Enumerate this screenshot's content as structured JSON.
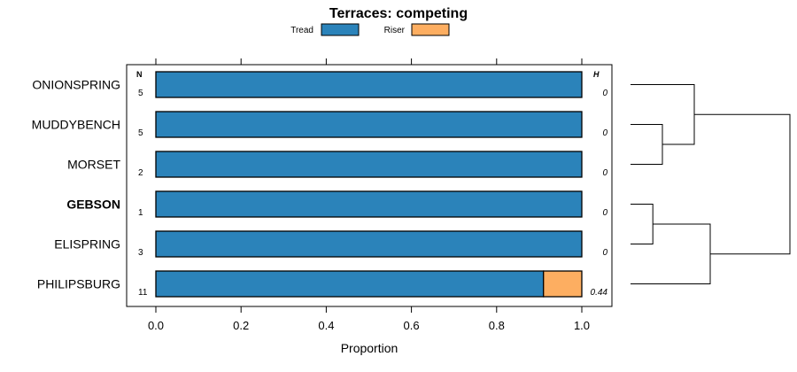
{
  "chart_data": {
    "type": "bar",
    "stacked": true,
    "orientation": "horizontal",
    "title": "Terraces: competing",
    "xlabel": "Proportion",
    "ylabel": "",
    "xlim": [
      0,
      1
    ],
    "xticks": [
      "0.0",
      "0.2",
      "0.4",
      "0.6",
      "0.8",
      "1.0"
    ],
    "xtick_values": [
      0,
      0.2,
      0.4,
      0.6,
      0.8,
      1.0
    ],
    "n_header": "N",
    "h_header": "H",
    "legend": [
      {
        "name": "Tread",
        "color": "#2b83ba"
      },
      {
        "name": "Riser",
        "color": "#fdae61"
      }
    ],
    "categories": [
      "ONIONSPRING",
      "MUDDYBENCH",
      "MORSET",
      "GEBSON",
      "ELISPRING",
      "PHILIPSBURG"
    ],
    "bold_category": "GEBSON",
    "series": [
      {
        "name": "Tread",
        "color": "#2b83ba",
        "values": [
          1,
          1,
          1,
          1,
          1,
          0.91
        ]
      },
      {
        "name": "Riser",
        "color": "#fdae61",
        "values": [
          0,
          0,
          0,
          0,
          0,
          0.09
        ]
      }
    ],
    "n": [
      "5",
      "5",
      "2",
      "1",
      "3",
      "11"
    ],
    "h": [
      "0",
      "0",
      "0",
      "0",
      "0",
      "0.44"
    ],
    "dendrogram": {
      "leaf_order": [
        "ONIONSPRING",
        "MUDDYBENCH",
        "MORSET",
        "GEBSON",
        "ELISPRING",
        "PHILIPSBURG"
      ],
      "merges": [
        {
          "a": "MUDDYBENCH",
          "b": "MORSET",
          "height": 0.2
        },
        {
          "a": "GEBSON",
          "b": "ELISPRING",
          "height": 0.14
        },
        {
          "a": "ONIONSPRING",
          "b": "MUDDYBENCH+MORSET",
          "height": 0.4
        },
        {
          "a": "GEBSON+ELISPRING",
          "b": "PHILIPSBURG",
          "height": 0.5
        },
        {
          "a": "ONIONSPRING+MUDDYBENCH+MORSET",
          "b": "GEBSON+ELISPRING+PHILIPSBURG",
          "height": 1.0
        }
      ]
    }
  }
}
